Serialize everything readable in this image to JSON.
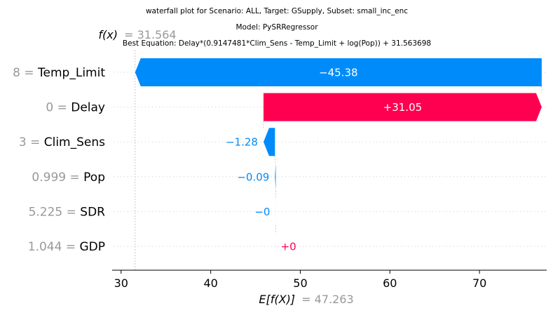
{
  "chart_data": {
    "type": "waterfall",
    "title_lines": [
      "waterfall plot for Scenario: ALL, Target: GSupply, Subset: small_inc_enc",
      "Model: PySRRegressor",
      "Best Equation: Delay*(0.9147481*Clim_Sens - Temp_Limit + log(Pop)) + 31.563698"
    ],
    "fx_label": "f(x)",
    "fx_value_text": "= 31.564",
    "fx_value": 31.564,
    "efx_label": "E[f(X)]",
    "efx_value_text": "= 47.263",
    "base_value": 47.263,
    "xlim": [
      29,
      77.5
    ],
    "xticks": [
      30,
      40,
      50,
      60,
      70
    ],
    "rows": [
      {
        "feature_value": "8",
        "feature": "Temp_Limit",
        "value": -45.38,
        "label": "−45.38"
      },
      {
        "feature_value": "0",
        "feature": "Delay",
        "value": 31.05,
        "label": "+31.05"
      },
      {
        "feature_value": "3",
        "feature": "Clim_Sens",
        "value": -1.28,
        "label": "−1.28"
      },
      {
        "feature_value": "0.999",
        "feature": "Pop",
        "value": -0.09,
        "label": "−0.09"
      },
      {
        "feature_value": "5.225",
        "feature": "SDR",
        "value": -0.003,
        "label": "−0"
      },
      {
        "feature_value": "1.044",
        "feature": "GDP",
        "value": 0.003,
        "label": "+0"
      }
    ],
    "colors": {
      "positive": "#ff0051",
      "negative": "#008bfb",
      "positive_text": "#ff0051",
      "negative_text": "#008bfb",
      "muted": "#999999"
    }
  }
}
